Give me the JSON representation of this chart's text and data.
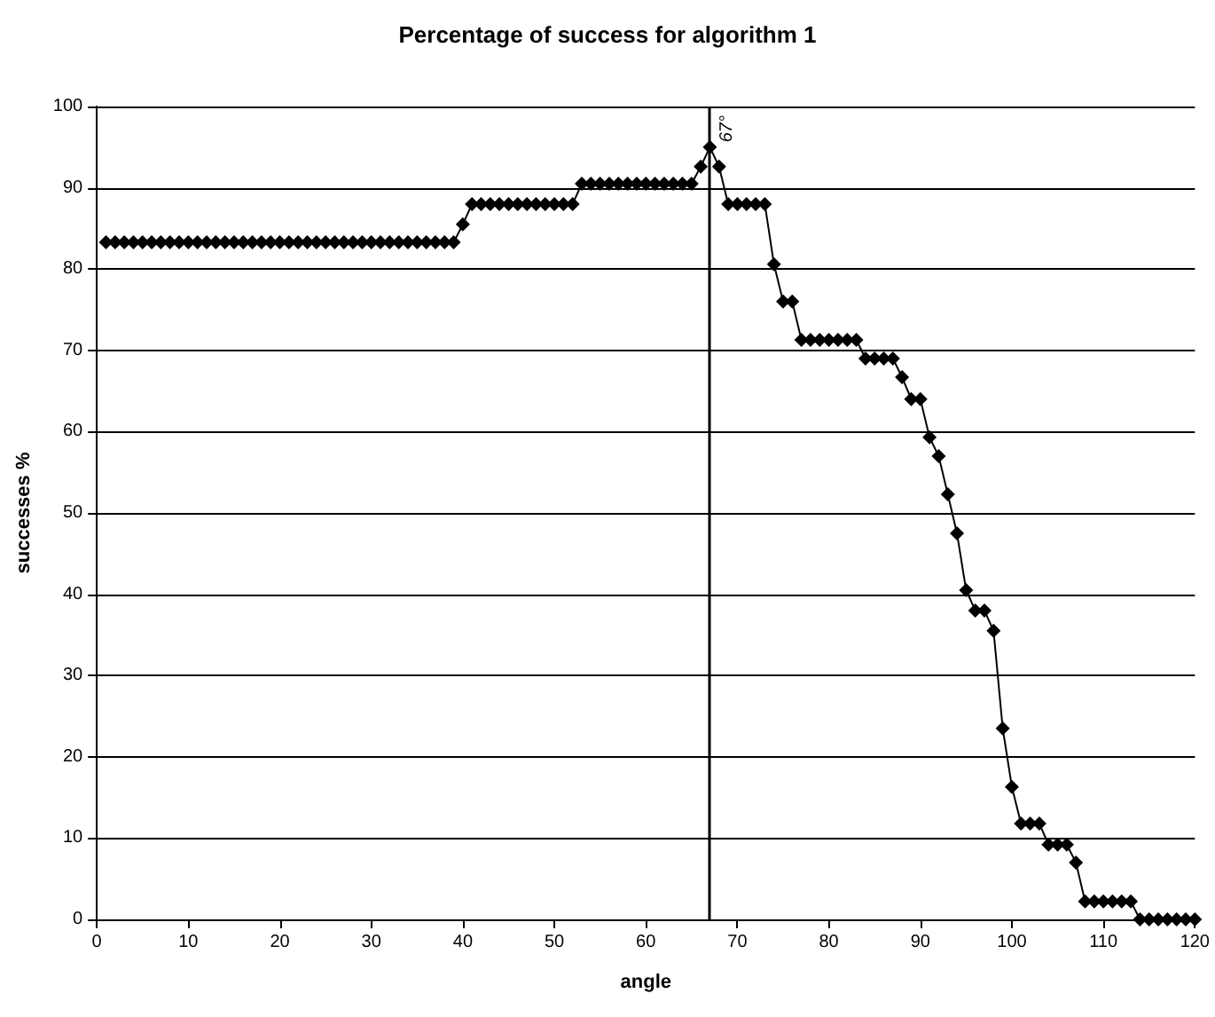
{
  "chart_data": {
    "type": "line",
    "title": "Percentage of success for algorithm 1",
    "xlabel": "angle",
    "ylabel": "successes %",
    "x": [
      1,
      2,
      3,
      4,
      5,
      6,
      7,
      8,
      9,
      10,
      11,
      12,
      13,
      14,
      15,
      16,
      17,
      18,
      19,
      20,
      21,
      22,
      23,
      24,
      25,
      26,
      27,
      28,
      29,
      30,
      31,
      32,
      33,
      34,
      35,
      36,
      37,
      38,
      39,
      40,
      41,
      42,
      43,
      44,
      45,
      46,
      47,
      48,
      49,
      50,
      51,
      52,
      53,
      54,
      55,
      56,
      57,
      58,
      59,
      60,
      61,
      62,
      63,
      64,
      65,
      66,
      67,
      68,
      69,
      70,
      71,
      72,
      73,
      74,
      75,
      76,
      77,
      78,
      79,
      80,
      81,
      82,
      83,
      84,
      85,
      86,
      87,
      88,
      89,
      90,
      91,
      92,
      93,
      94,
      95,
      96,
      97,
      98,
      99,
      100,
      101,
      102,
      103,
      104,
      105,
      106,
      107,
      108,
      109,
      110,
      111,
      112,
      113,
      114,
      115,
      116,
      117,
      118,
      119,
      120
    ],
    "series": [
      {
        "color": "#000000",
        "values": [
          83.3,
          83.3,
          83.3,
          83.3,
          83.3,
          83.3,
          83.3,
          83.3,
          83.3,
          83.3,
          83.3,
          83.3,
          83.3,
          83.3,
          83.3,
          83.3,
          83.3,
          83.3,
          83.3,
          83.3,
          83.3,
          83.3,
          83.3,
          83.3,
          83.3,
          83.3,
          83.3,
          83.3,
          83.3,
          83.3,
          83.3,
          83.3,
          83.3,
          83.3,
          83.3,
          83.3,
          83.3,
          83.3,
          83.3,
          85.5,
          88,
          88,
          88,
          88,
          88,
          88,
          88,
          88,
          88,
          88,
          88,
          88,
          90.5,
          90.5,
          90.5,
          90.5,
          90.5,
          90.5,
          90.5,
          90.5,
          90.5,
          90.5,
          90.5,
          90.5,
          90.5,
          92.6,
          95,
          92.6,
          88,
          88,
          88,
          88,
          88,
          80.6,
          76,
          76,
          71.3,
          71.3,
          71.3,
          71.3,
          71.3,
          71.3,
          71.3,
          69,
          69,
          69,
          69,
          66.7,
          64,
          64,
          59.3,
          57,
          52.3,
          47.5,
          40.5,
          38,
          38,
          35.5,
          23.5,
          16.3,
          11.8,
          11.8,
          11.8,
          9.2,
          9.2,
          9.2,
          7,
          2.2,
          2.2,
          2.2,
          2.2,
          2.2,
          2.2,
          0,
          0,
          0,
          0,
          0,
          0,
          0
        ]
      }
    ],
    "xlim": [
      0,
      120
    ],
    "xticks": [
      0,
      10,
      20,
      30,
      40,
      50,
      60,
      70,
      80,
      90,
      100,
      110,
      120
    ],
    "ylim": [
      0,
      100
    ],
    "yticks": [
      0,
      10,
      20,
      30,
      40,
      50,
      60,
      70,
      80,
      90,
      100
    ],
    "grid": "y",
    "marker": "diamond",
    "line_style": "solid",
    "ref_lines": [
      {
        "axis": "x",
        "value": 67,
        "label": "67°",
        "color": "#000000"
      }
    ]
  }
}
